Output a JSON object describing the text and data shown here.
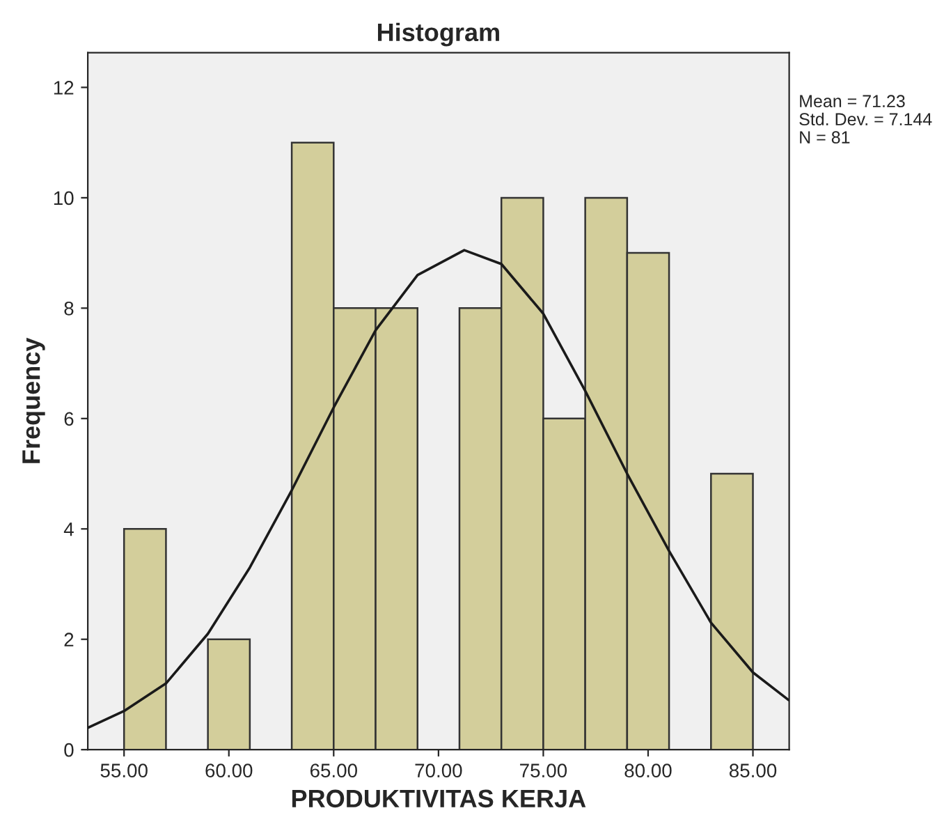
{
  "chart_data": {
    "type": "histogram",
    "title": "Histogram",
    "xlabel": "PRODUKTIVITAS KERJA",
    "ylabel": "Frequency",
    "bins": [
      55,
      57,
      59,
      61,
      63,
      65,
      67,
      69,
      71,
      73,
      75,
      77,
      79,
      81,
      83,
      85
    ],
    "values": [
      4,
      0,
      2,
      0,
      11,
      8,
      8,
      0,
      8,
      10,
      6,
      10,
      9,
      0,
      5
    ],
    "color": "#d3ce9b",
    "series": [
      {
        "type": "line",
        "color": "#1a1a1a",
        "x": [
          53.3,
          55,
          57,
          59,
          61,
          63,
          65,
          67,
          69,
          71.23,
          73,
          75,
          77,
          79,
          81,
          83,
          85,
          86.7
        ],
        "values": [
          0.4,
          0.7,
          1.2,
          2.1,
          3.3,
          4.7,
          6.2,
          7.6,
          8.6,
          9.05,
          8.8,
          7.9,
          6.5,
          5.0,
          3.6,
          2.3,
          1.4,
          0.9
        ]
      }
    ],
    "xlim": [
      53.27,
      86.73
    ],
    "ylim": [
      0,
      12.63
    ],
    "xticks": [
      {
        "value": 55,
        "label": "55.00"
      },
      {
        "value": 60,
        "label": "60.00"
      },
      {
        "value": 65,
        "label": "65.00"
      },
      {
        "value": 70,
        "label": "70.00"
      },
      {
        "value": 75,
        "label": "75.00"
      },
      {
        "value": 80,
        "label": "80.00"
      },
      {
        "value": 85,
        "label": "85.00"
      }
    ],
    "yticks": [
      0,
      2,
      4,
      6,
      8,
      10,
      12
    ],
    "annotations": [
      "Mean = 71.23",
      "Std. Dev. = 7.144",
      "N = 81"
    ]
  }
}
